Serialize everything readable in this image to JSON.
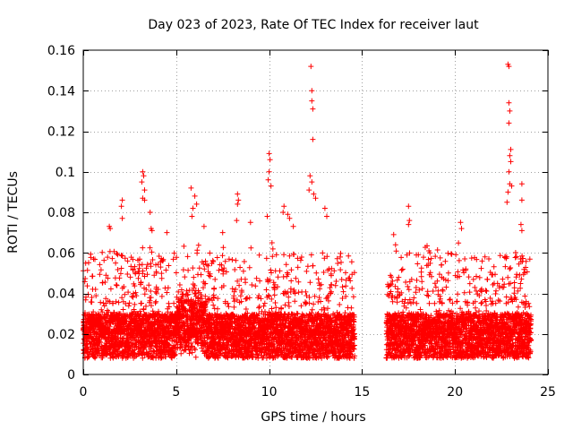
{
  "chart_data": {
    "type": "scatter",
    "title": "Day 023 of 2023, Rate Of TEC Index for receiver laut",
    "xlabel": "GPS time / hours",
    "ylabel": "ROTI / TECUs",
    "xlim": [
      0,
      25
    ],
    "ylim": [
      0,
      0.16
    ],
    "x_ticks": [
      0,
      5,
      10,
      15,
      20,
      25
    ],
    "x_tick_labels": [
      "0",
      "5",
      "10",
      "15",
      "20",
      "25"
    ],
    "y_ticks": [
      0,
      0.02,
      0.04,
      0.06,
      0.08,
      0.1,
      0.12,
      0.14,
      0.16
    ],
    "y_tick_labels": [
      "0",
      "0.02",
      "0.04",
      "0.06",
      "0.08",
      "0.1",
      "0.12",
      "0.14",
      "0.16"
    ],
    "grid": true,
    "marker": "+",
    "marker_color": "#ff0000",
    "data_gap_hours": [
      14.6,
      16.3
    ],
    "series": [
      {
        "name": "ROTI",
        "points": [
          [
            12.25,
            0.152
          ],
          [
            12.3,
            0.14
          ],
          [
            12.3,
            0.135
          ],
          [
            12.35,
            0.131
          ],
          [
            12.35,
            0.116
          ],
          [
            22.85,
            0.153
          ],
          [
            22.9,
            0.152
          ],
          [
            22.9,
            0.134
          ],
          [
            22.95,
            0.13
          ],
          [
            22.9,
            0.124
          ],
          [
            23.0,
            0.111
          ],
          [
            22.95,
            0.108
          ],
          [
            23.0,
            0.105
          ],
          [
            22.9,
            0.1
          ],
          [
            22.95,
            0.094
          ],
          [
            23.05,
            0.093
          ],
          [
            23.6,
            0.094
          ],
          [
            22.85,
            0.09
          ],
          [
            22.8,
            0.085
          ],
          [
            23.6,
            0.086
          ],
          [
            23.55,
            0.074
          ],
          [
            23.6,
            0.071
          ],
          [
            10.0,
            0.109
          ],
          [
            10.05,
            0.106
          ],
          [
            10.0,
            0.1
          ],
          [
            9.95,
            0.096
          ],
          [
            10.1,
            0.093
          ],
          [
            3.2,
            0.1
          ],
          [
            3.25,
            0.098
          ],
          [
            3.15,
            0.095
          ],
          [
            3.3,
            0.091
          ],
          [
            3.2,
            0.087
          ],
          [
            3.3,
            0.086
          ],
          [
            12.2,
            0.098
          ],
          [
            12.3,
            0.095
          ],
          [
            12.4,
            0.089
          ],
          [
            12.15,
            0.091
          ],
          [
            12.5,
            0.087
          ],
          [
            5.8,
            0.092
          ],
          [
            6.0,
            0.088
          ],
          [
            6.1,
            0.084
          ],
          [
            5.9,
            0.082
          ],
          [
            5.85,
            0.078
          ],
          [
            8.3,
            0.089
          ],
          [
            8.35,
            0.086
          ],
          [
            8.3,
            0.084
          ],
          [
            8.25,
            0.076
          ],
          [
            10.8,
            0.083
          ],
          [
            10.75,
            0.08
          ],
          [
            13.0,
            0.082
          ],
          [
            13.1,
            0.078
          ],
          [
            2.1,
            0.086
          ],
          [
            2.05,
            0.083
          ],
          [
            2.1,
            0.077
          ],
          [
            3.6,
            0.08
          ],
          [
            3.65,
            0.072
          ],
          [
            3.7,
            0.071
          ],
          [
            1.4,
            0.073
          ],
          [
            1.45,
            0.072
          ],
          [
            17.5,
            0.083
          ],
          [
            17.55,
            0.076
          ],
          [
            17.5,
            0.074
          ],
          [
            20.3,
            0.075
          ],
          [
            20.35,
            0.072
          ],
          [
            11.0,
            0.079
          ],
          [
            11.1,
            0.077
          ],
          [
            11.3,
            0.073
          ],
          [
            9.0,
            0.075
          ],
          [
            9.9,
            0.078
          ],
          [
            16.7,
            0.069
          ],
          [
            16.8,
            0.064
          ],
          [
            18.6,
            0.061
          ],
          [
            18.65,
            0.06
          ],
          [
            4.5,
            0.07
          ],
          [
            6.5,
            0.073
          ],
          [
            7.5,
            0.07
          ]
        ]
      }
    ]
  }
}
